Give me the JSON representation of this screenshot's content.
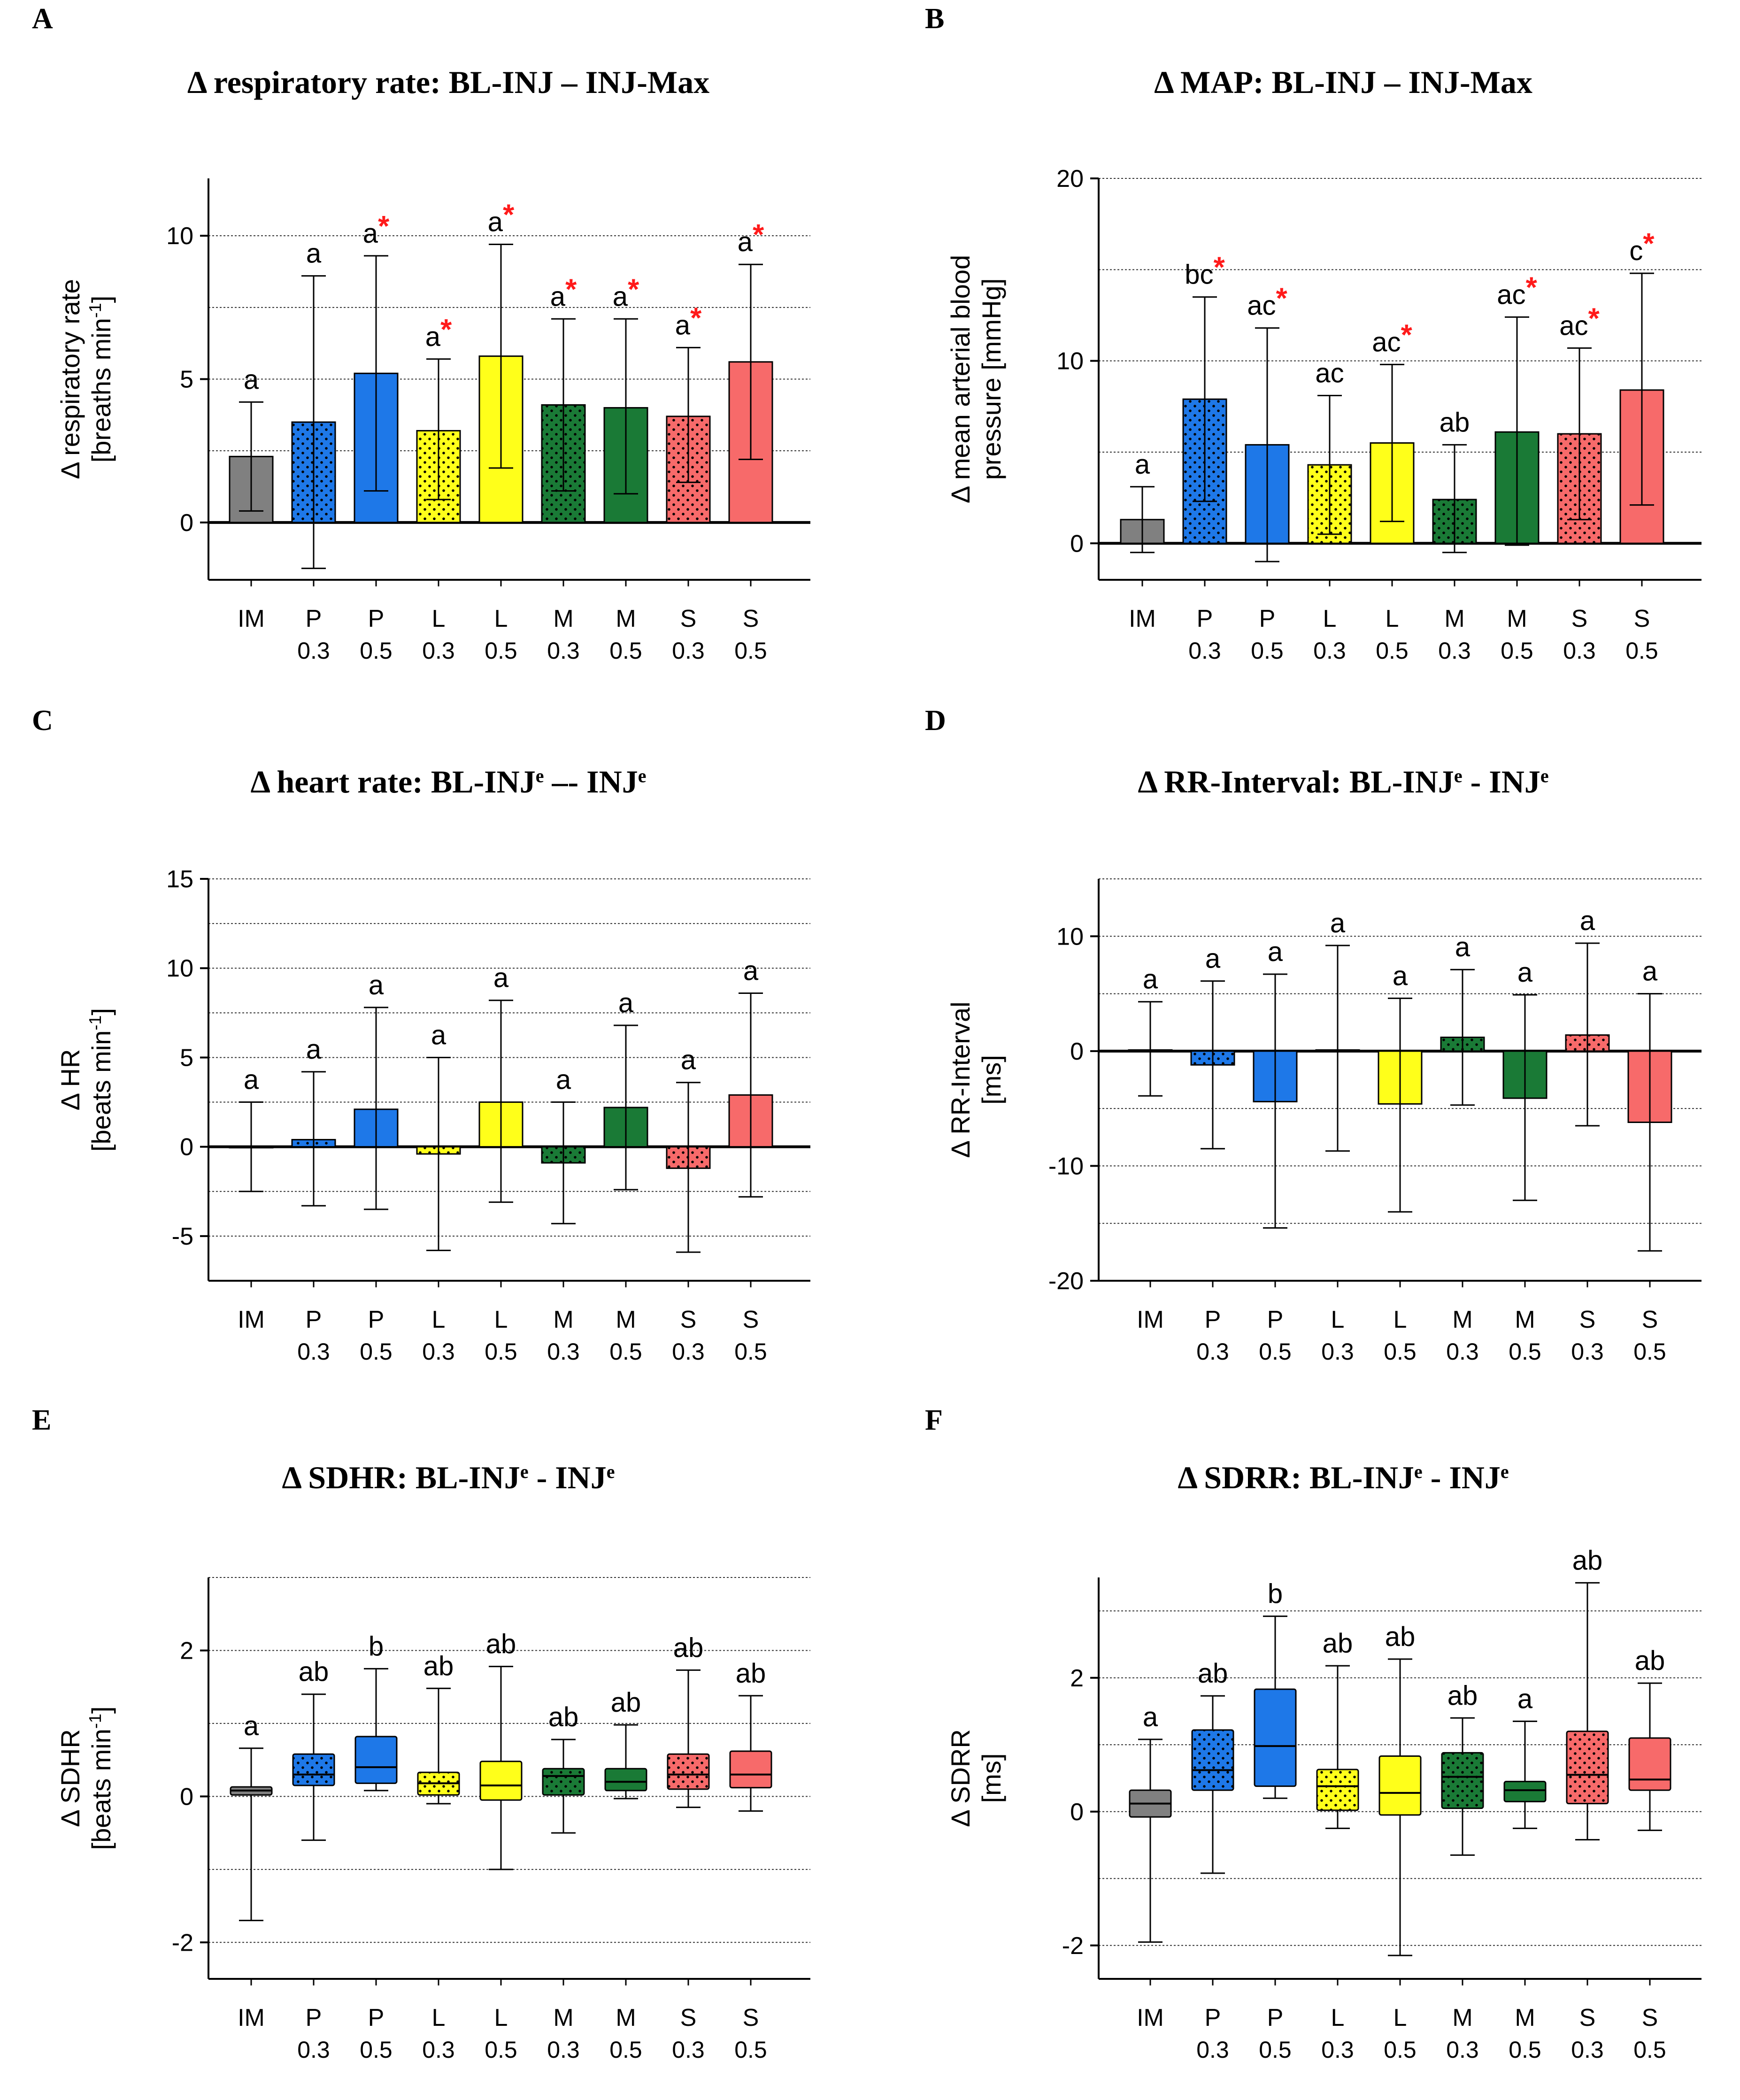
{
  "colors": {
    "IM": "#808080",
    "P": "#1E78E8",
    "L": "#FFFF1A",
    "M": "#1A7A36",
    "S": "#F76A6A"
  },
  "categories": [
    {
      "top": "IM",
      "bottom": "",
      "group": "IM",
      "dotted": false
    },
    {
      "top": "P",
      "bottom": "0.3",
      "group": "P",
      "dotted": true
    },
    {
      "top": "P",
      "bottom": "0.5",
      "group": "P",
      "dotted": false
    },
    {
      "top": "L",
      "bottom": "0.3",
      "group": "L",
      "dotted": true
    },
    {
      "top": "L",
      "bottom": "0.5",
      "group": "L",
      "dotted": false
    },
    {
      "top": "M",
      "bottom": "0.3",
      "group": "M",
      "dotted": true
    },
    {
      "top": "M",
      "bottom": "0.5",
      "group": "M",
      "dotted": false
    },
    {
      "top": "S",
      "bottom": "0.3",
      "group": "S",
      "dotted": true
    },
    {
      "top": "S",
      "bottom": "0.5",
      "group": "S",
      "dotted": false
    }
  ],
  "chart_data": [
    {
      "id": "A",
      "type": "bar",
      "panel_letter": "A",
      "title": "Δ respiratory rate: BL-INJ – INJ-Max",
      "ylabel_line1": "Δ respiratory rate",
      "ylabel_line2": "[breaths min",
      "ylabel_sup": "-1",
      "ylabel_end": "]",
      "ylim": [
        -2,
        12
      ],
      "yticks": [
        0,
        5,
        10
      ],
      "ytick_labels": [
        "0",
        "5",
        "10"
      ],
      "gridlines": [
        2.5,
        5,
        7.5,
        10
      ],
      "values": [
        2.3,
        3.5,
        5.2,
        3.2,
        5.8,
        4.1,
        4.0,
        3.7,
        5.6
      ],
      "err_low": [
        0.4,
        -1.6,
        1.1,
        0.8,
        1.9,
        1.1,
        1.0,
        1.4,
        2.2
      ],
      "err_high": [
        4.2,
        8.6,
        9.3,
        5.7,
        9.7,
        7.1,
        7.1,
        6.1,
        9.0
      ],
      "letters": [
        "a",
        "a",
        "a",
        "a",
        "a",
        "a",
        "a",
        "a",
        "a"
      ],
      "stars": [
        false,
        false,
        true,
        true,
        true,
        true,
        true,
        true,
        true
      ]
    },
    {
      "id": "B",
      "type": "bar",
      "panel_letter": "B",
      "title": "Δ MAP: BL-INJ – INJ-Max",
      "ylabel_line1": "Δ mean arterial blood",
      "ylabel_line2": "pressure [mmHg]",
      "ylabel_sup": "",
      "ylabel_end": "",
      "ylim": [
        -2,
        20
      ],
      "yticks": [
        0,
        10,
        20
      ],
      "ytick_labels": [
        "0",
        "10",
        "20"
      ],
      "gridlines": [
        5,
        10,
        15,
        20
      ],
      "values": [
        1.3,
        7.9,
        5.4,
        4.3,
        5.5,
        2.4,
        6.1,
        6.0,
        8.4
      ],
      "err_low": [
        -0.5,
        2.3,
        -1.0,
        0.5,
        1.2,
        -0.5,
        -0.1,
        1.3,
        2.1
      ],
      "err_high": [
        3.1,
        13.5,
        11.8,
        8.1,
        9.8,
        5.4,
        12.4,
        10.7,
        14.8
      ],
      "letters": [
        "a",
        "bc",
        "ac",
        "ac",
        "ac",
        "ab",
        "ac",
        "ac",
        "c"
      ],
      "stars": [
        false,
        true,
        true,
        false,
        true,
        false,
        true,
        true,
        true
      ]
    },
    {
      "id": "C",
      "type": "bar",
      "panel_letter": "C",
      "title": "Δ heart rate: BL-INJ",
      "title_sup1": "e",
      "title_mid": " –- INJ",
      "title_sup2": "e",
      "ylabel_line1": "Δ HR",
      "ylabel_line2": "[beats min",
      "ylabel_sup": "-1",
      "ylabel_end": "]",
      "ylim": [
        -7.5,
        15
      ],
      "yticks": [
        -5,
        0,
        5,
        10,
        15
      ],
      "ytick_labels": [
        "-5",
        "0",
        "5",
        "10",
        "15"
      ],
      "gridlines": [
        -5,
        -2.5,
        2.5,
        5,
        7.5,
        10,
        12.5,
        15
      ],
      "values": [
        0,
        0.4,
        2.1,
        -0.4,
        2.5,
        -0.9,
        2.2,
        -1.2,
        2.9
      ],
      "err_low": [
        -2.5,
        -3.3,
        -3.5,
        -5.8,
        -3.1,
        -4.3,
        -2.4,
        -5.9,
        -2.8
      ],
      "err_high": [
        2.5,
        4.2,
        7.8,
        5.0,
        8.2,
        2.5,
        6.8,
        3.6,
        8.6
      ],
      "letters": [
        "a",
        "a",
        "a",
        "a",
        "a",
        "a",
        "a",
        "a",
        "a"
      ],
      "stars": [
        false,
        false,
        false,
        false,
        false,
        false,
        false,
        false,
        false
      ]
    },
    {
      "id": "D",
      "type": "bar",
      "panel_letter": "D",
      "title": "Δ RR-Interval: BL-INJ",
      "title_sup1": "e",
      "title_mid": " - INJ",
      "title_sup2": "e",
      "ylabel_line1": "Δ RR-Interval",
      "ylabel_line2": "[ms]",
      "ylabel_sup": "",
      "ylabel_end": "",
      "ylim": [
        -20,
        15
      ],
      "yticks": [
        -20,
        -10,
        0,
        10
      ],
      "ytick_labels": [
        "-20",
        "-10",
        "0",
        "10"
      ],
      "gridlines": [
        -15,
        -10,
        -5,
        5,
        10,
        15
      ],
      "values": [
        0.1,
        -1.2,
        -4.4,
        0.1,
        -4.6,
        1.2,
        -4.1,
        1.4,
        -6.2
      ],
      "err_low": [
        -3.9,
        -8.5,
        -15.4,
        -8.7,
        -14.0,
        -4.7,
        -13.0,
        -6.5,
        -17.4
      ],
      "err_high": [
        4.3,
        6.1,
        6.7,
        9.2,
        4.6,
        7.1,
        4.9,
        9.4,
        5.0
      ],
      "letters": [
        "a",
        "a",
        "a",
        "a",
        "a",
        "a",
        "a",
        "a",
        "a"
      ],
      "stars": [
        false,
        false,
        false,
        false,
        false,
        false,
        false,
        false,
        false
      ]
    },
    {
      "id": "E",
      "type": "box",
      "panel_letter": "E",
      "title": "Δ SDHR: BL-INJ",
      "title_sup1": "e",
      "title_mid": " - INJ",
      "title_sup2": "e",
      "ylabel_line1": "Δ SDHR",
      "ylabel_line2": "[beats min",
      "ylabel_sup": "-1",
      "ylabel_end": "]",
      "ylim": [
        -2.5,
        3
      ],
      "yticks": [
        -2,
        0,
        2
      ],
      "ytick_labels": [
        "-2",
        "0",
        "2"
      ],
      "gridlines": [
        -2,
        -1,
        0,
        1,
        2,
        3
      ],
      "q1": [
        0.02,
        0.15,
        0.18,
        0.02,
        -0.05,
        0.02,
        0.08,
        0.1,
        0.12
      ],
      "median": [
        0.08,
        0.3,
        0.4,
        0.18,
        0.15,
        0.28,
        0.2,
        0.3,
        0.3
      ],
      "q3": [
        0.13,
        0.58,
        0.82,
        0.33,
        0.48,
        0.38,
        0.38,
        0.58,
        0.62
      ],
      "whisker_low": [
        -1.7,
        -0.6,
        0.08,
        -0.1,
        -1.0,
        -0.5,
        -0.03,
        -0.15,
        -0.2
      ],
      "whisker_high": [
        0.66,
        1.4,
        1.75,
        1.48,
        1.78,
        0.78,
        0.98,
        1.73,
        1.38
      ],
      "letters": [
        "a",
        "ab",
        "b",
        "ab",
        "ab",
        "ab",
        "ab",
        "ab",
        "ab"
      ]
    },
    {
      "id": "F",
      "type": "box",
      "panel_letter": "F",
      "title": "Δ SDRR: BL-INJ",
      "title_sup1": "e",
      "title_mid": " - INJ",
      "title_sup2": "e",
      "ylabel_line1": "Δ SDRR",
      "ylabel_line2": "[ms]",
      "ylabel_sup": "",
      "ylabel_end": "",
      "ylim": [
        -2.5,
        3.5
      ],
      "yticks": [
        -2,
        0,
        2
      ],
      "ytick_labels": [
        "-2",
        "0",
        "2"
      ],
      "gridlines": [
        -2,
        -1,
        0,
        1,
        2,
        3
      ],
      "q1": [
        -0.08,
        0.32,
        0.38,
        0.02,
        -0.05,
        0.05,
        0.15,
        0.12,
        0.32
      ],
      "median": [
        0.12,
        0.62,
        0.98,
        0.38,
        0.28,
        0.52,
        0.32,
        0.55,
        0.48
      ],
      "q3": [
        0.32,
        1.22,
        1.83,
        0.63,
        0.83,
        0.88,
        0.45,
        1.2,
        1.1
      ],
      "whisker_low": [
        -1.95,
        -0.92,
        0.2,
        -0.25,
        -2.15,
        -0.65,
        -0.25,
        -0.42,
        -0.28
      ],
      "whisker_high": [
        1.08,
        1.73,
        2.92,
        2.18,
        2.28,
        1.4,
        1.35,
        3.42,
        1.92
      ],
      "letters": [
        "a",
        "ab",
        "b",
        "ab",
        "ab",
        "ab",
        "a",
        "ab",
        "ab"
      ]
    }
  ]
}
